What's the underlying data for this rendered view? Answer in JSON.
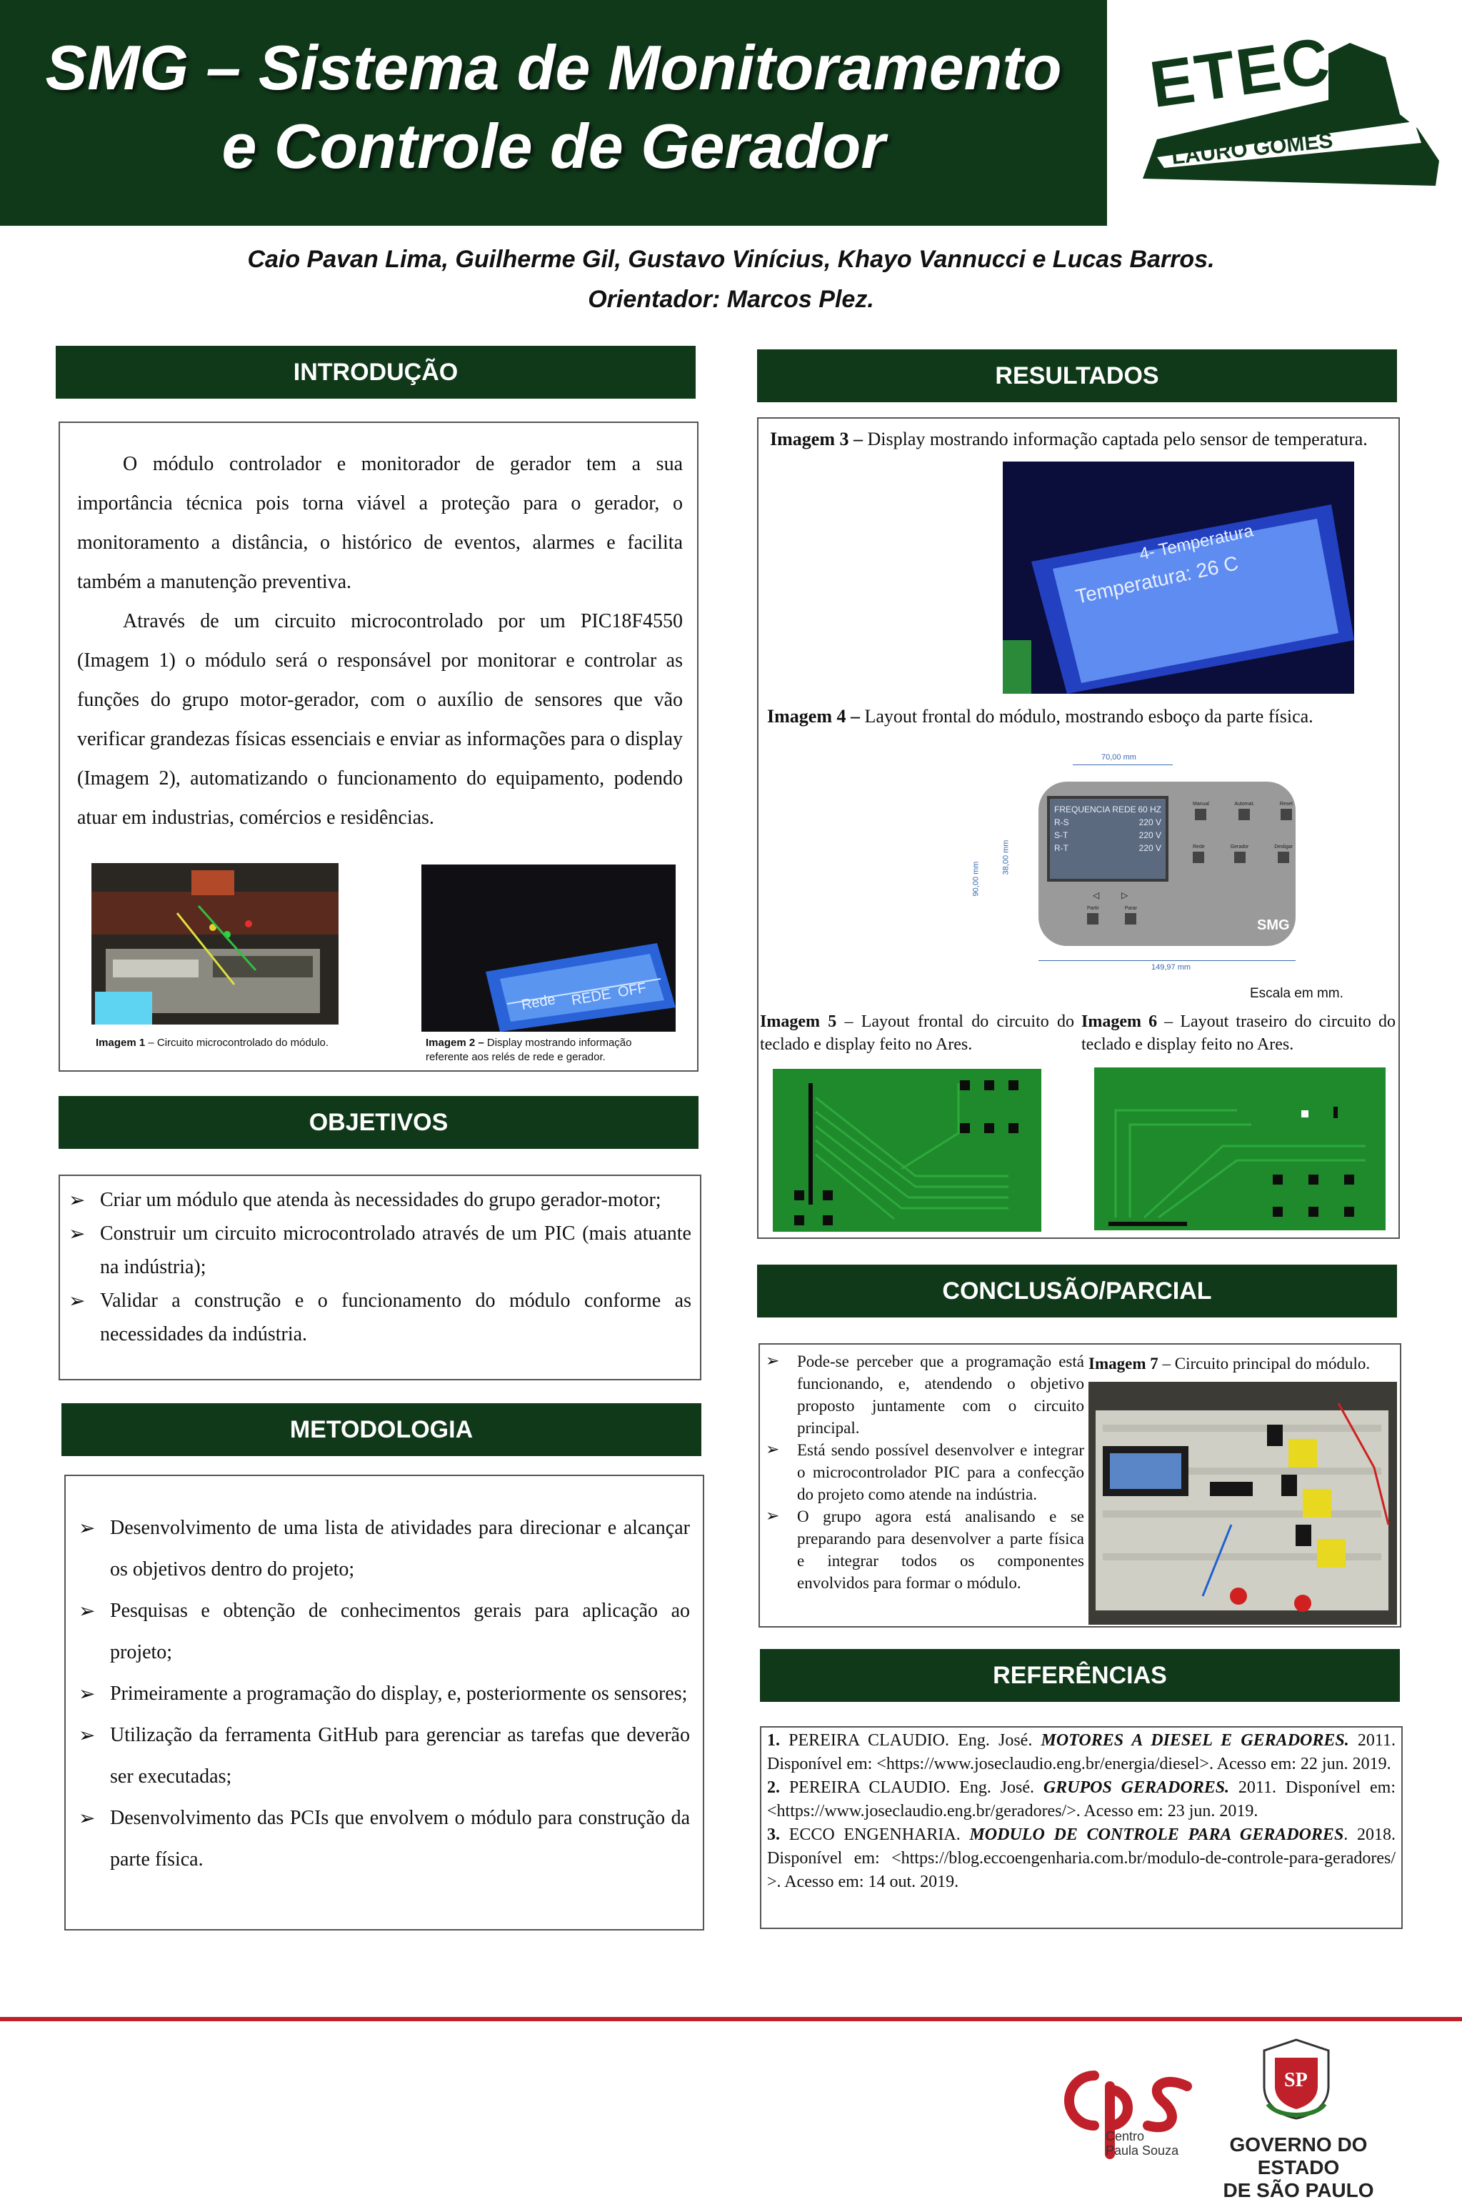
{
  "header": {
    "title_line1": "SMG – Sistema de Monitoramento",
    "title_line2": "e Controle de Gerador",
    "logo_name": "ETEC",
    "logo_sub": "LAURO GOMES"
  },
  "authors": {
    "names": "Caio Pavan Lima, Guilherme Gil, Gustavo Vinícius, Khayo Vannucci e Lucas Barros.",
    "advisor": "Orientador: Marcos Plez."
  },
  "introducao": {
    "heading": "INTRODUÇÃO",
    "p1": "O módulo controlador e monitorador de gerador tem a sua importância técnica pois torna viável a proteção para o gerador, o monitoramento a distância, o histórico de eventos, alarmes e facilita também a manutenção preventiva.",
    "p2": "Através de um circuito microcontrolado por um PIC18F4550 (Imagem 1) o módulo será o responsável por monitorar e controlar as funções do grupo motor-gerador, com o auxílio de sensores  que vão verificar grandezas físicas essenciais e enviar as informações para o display (Imagem 2), automatizando o funcionamento do equipamento, podendo atuar em industrias, comércios e residências.",
    "img1_label": "Imagem 1",
    "img1_caption": " – Circuito microcontrolado  do módulo.",
    "img2_label": "Imagem 2 –",
    "img2_caption": " Display mostrando  informação referente  aos relés de rede e gerador.",
    "img2_screen_text": [
      "Rede",
      "REDE",
      "OFF"
    ]
  },
  "objetivos": {
    "heading": "OBJETIVOS",
    "items": [
      "Criar um módulo que atenda às necessidades do grupo gerador-motor;",
      "Construir um circuito microcontrolado através de um PIC (mais atuante na indústria);",
      "Validar a construção e o funcionamento do módulo conforme as necessidades da indústria."
    ]
  },
  "metodologia": {
    "heading": "METODOLOGIA",
    "items": [
      "Desenvolvimento de uma lista de atividades para direcionar e alcançar os objetivos dentro do projeto;",
      "Pesquisas e obtenção de conhecimentos gerais para aplicação ao projeto;",
      "Primeiramente a programação do display, e, posteriormente os sensores;",
      "Utilização da ferramenta GitHub para gerenciar as tarefas que deverão ser executadas;",
      "Desenvolvimento das PCIs que envolvem o módulo para construção da parte física."
    ]
  },
  "resultados": {
    "heading": "RESULTADOS",
    "img3_label": "Imagem 3 –",
    "img3_caption": " Display mostrando informação captada pelo sensor de temperatura.",
    "img3_screen_line1": "4- Temperatura",
    "img3_screen_line2": "Temperatura: 26 C",
    "img4_label": "Imagem 4 –",
    "img4_caption": " Layout frontal do módulo, mostrando esboço da parte física.",
    "img4_dim_top": "70,00 mm",
    "img4_dim_left1": "90,00 mm",
    "img4_dim_left2": "38,00 mm",
    "img4_dim_bottom": "149,97 mm",
    "img4_lcd": [
      [
        "FREQUENCIA REDE",
        "60 HZ"
      ],
      [
        "R-S",
        "220 V"
      ],
      [
        "S-T",
        "220 V"
      ],
      [
        "R-T",
        "220 V"
      ]
    ],
    "img4_buttons_top": [
      "Manual",
      "Automat.",
      "Reset"
    ],
    "img4_buttons_mid": [
      "Rede",
      "Gerador",
      "Desligar"
    ],
    "img4_buttons_bottom": [
      "Partir",
      "Parar"
    ],
    "img4_brand": "SMG",
    "img4_scale": "Escala em mm.",
    "img5_label": "Imagem 5",
    "img5_caption": " – Layout frontal do circuito do teclado e display feito no Ares.",
    "img6_label": "Imagem 6",
    "img6_caption": " – Layout traseiro do circuito do teclado e display feito no Ares."
  },
  "conclusao": {
    "heading": "CONCLUSÃO/PARCIAL",
    "items": [
      "Pode-se perceber que a programação está funcionando, e, atendendo o objetivo proposto juntamente com o circuito principal.",
      " Está sendo possível desenvolver e integrar o microcontrolador PIC para a confecção do projeto como atende na indústria.",
      "O grupo agora está analisando e se preparando para desenvolver a parte física e integrar todos os componentes envolvidos  para formar o módulo."
    ],
    "img7_label": "Imagem 7",
    "img7_caption": " – Circuito principal do módulo."
  },
  "referencias": {
    "heading": "REFERÊNCIAS",
    "items": [
      {
        "num": "1.",
        "author": " PEREIRA CLAUDIO. Eng. José. ",
        "title": "MOTORES A DIESEL E GERADORES.",
        "rest": " 2011. Disponível em: <https://www.joseclaudio.eng.br/energia/diesel>. Acesso em: 22 jun. 2019."
      },
      {
        "num": "2.",
        "author": " PEREIRA CLAUDIO. Eng. José. ",
        "title": "GRUPOS GERADORES.",
        "rest": " 2011. Disponível em: <https://www.joseclaudio.eng.br/geradores/>. Acesso em: 23 jun. 2019."
      },
      {
        "num": "3.",
        "author": " ECCO ENGENHARIA. ",
        "title": "MODULO DE CONTROLE PARA GERADORES",
        "rest": ". 2018. Disponível em: <https://blog.eccoengenharia.com.br/modulo-de-controle-para-geradores/ >. Acesso em: 14 out. 2019."
      }
    ]
  },
  "footer": {
    "cps_sub1": "Centro",
    "cps_sub2": "Paula Souza",
    "gov_line1": "GOVERNO DO ESTADO",
    "gov_line2": "DE SÃO PAULO",
    "seal_text": "SP"
  },
  "colors": {
    "dark_green": "#10391a",
    "red": "#c0202a",
    "pcb_green": "#1f8a2c"
  }
}
